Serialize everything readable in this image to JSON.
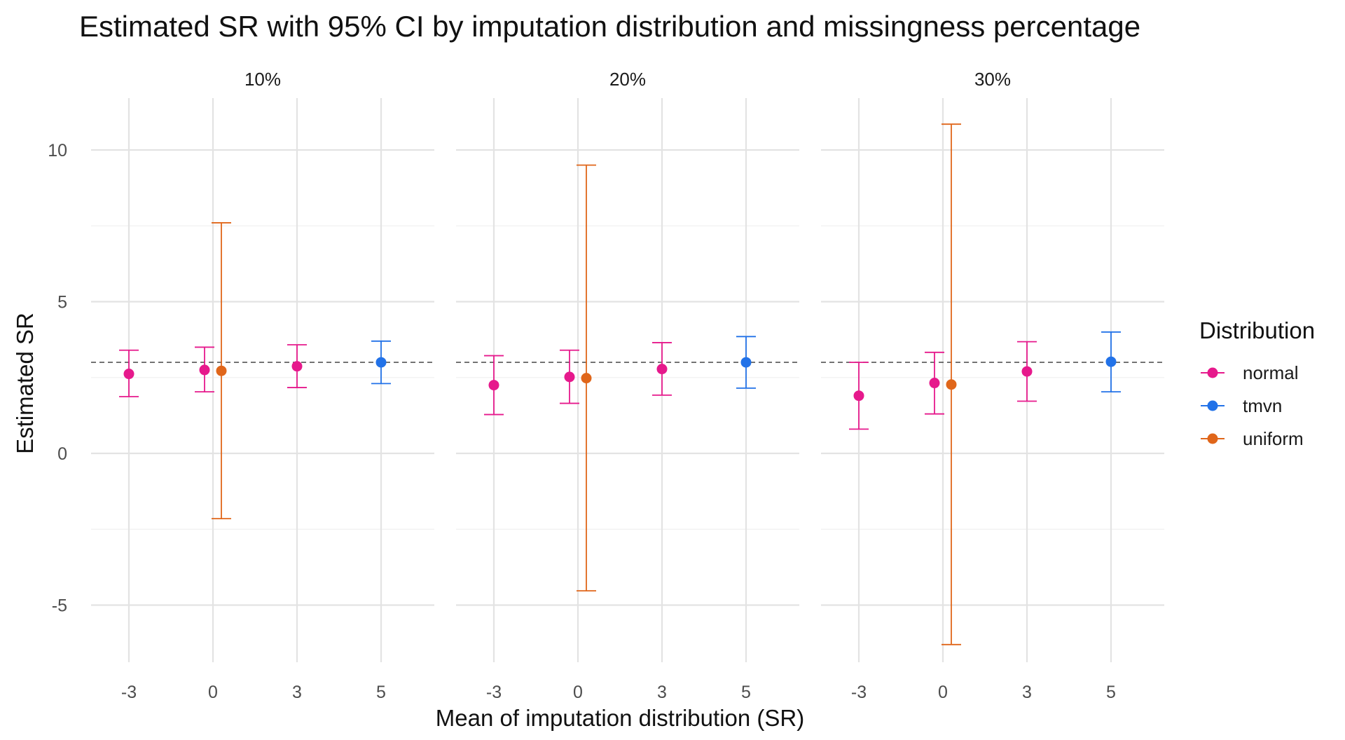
{
  "chart_data": {
    "type": "scatter",
    "title": "Estimated SR with 95% CI by imputation distribution and missingness percentage",
    "xlabel": "Mean of imputation distribution (SR)",
    "ylabel": "Estimated SR",
    "x_ticks": [
      "-3",
      "0",
      "3",
      "5"
    ],
    "y_ticks": [
      -5,
      0,
      5,
      10
    ],
    "ylim": [
      -7,
      11.5
    ],
    "reference_line": {
      "y": 3,
      "style": "dashed"
    },
    "grid": true,
    "legend": {
      "title": "Distribution",
      "position": "right",
      "entries": [
        {
          "name": "normal",
          "color": "#e6198c"
        },
        {
          "name": "tmvn",
          "color": "#2272e8"
        },
        {
          "name": "uniform",
          "color": "#e0661a"
        }
      ]
    },
    "panels": [
      {
        "label": "10%",
        "points": [
          {
            "x": -3,
            "distribution": "normal",
            "estimate": 2.62,
            "lower": 1.87,
            "upper": 3.4
          },
          {
            "x": 0,
            "distribution": "normal",
            "estimate": 2.75,
            "lower": 2.03,
            "upper": 3.5
          },
          {
            "x": 0,
            "distribution": "uniform",
            "estimate": 2.72,
            "lower": -2.15,
            "upper": 7.6
          },
          {
            "x": 3,
            "distribution": "normal",
            "estimate": 2.87,
            "lower": 2.17,
            "upper": 3.58
          },
          {
            "x": 5,
            "distribution": "tmvn",
            "estimate": 3.0,
            "lower": 2.3,
            "upper": 3.7
          }
        ]
      },
      {
        "label": "20%",
        "points": [
          {
            "x": -3,
            "distribution": "normal",
            "estimate": 2.25,
            "lower": 1.28,
            "upper": 3.22
          },
          {
            "x": 0,
            "distribution": "normal",
            "estimate": 2.52,
            "lower": 1.65,
            "upper": 3.4
          },
          {
            "x": 0,
            "distribution": "uniform",
            "estimate": 2.48,
            "lower": -4.53,
            "upper": 9.5
          },
          {
            "x": 3,
            "distribution": "normal",
            "estimate": 2.78,
            "lower": 1.92,
            "upper": 3.65
          },
          {
            "x": 5,
            "distribution": "tmvn",
            "estimate": 3.0,
            "lower": 2.15,
            "upper": 3.85
          }
        ]
      },
      {
        "label": "30%",
        "points": [
          {
            "x": -3,
            "distribution": "normal",
            "estimate": 1.9,
            "lower": 0.8,
            "upper": 3.0
          },
          {
            "x": 0,
            "distribution": "normal",
            "estimate": 2.32,
            "lower": 1.3,
            "upper": 3.33
          },
          {
            "x": 0,
            "distribution": "uniform",
            "estimate": 2.27,
            "lower": -6.3,
            "upper": 10.85
          },
          {
            "x": 3,
            "distribution": "normal",
            "estimate": 2.7,
            "lower": 1.72,
            "upper": 3.68
          },
          {
            "x": 5,
            "distribution": "tmvn",
            "estimate": 3.02,
            "lower": 2.03,
            "upper": 4.0
          }
        ]
      }
    ]
  }
}
